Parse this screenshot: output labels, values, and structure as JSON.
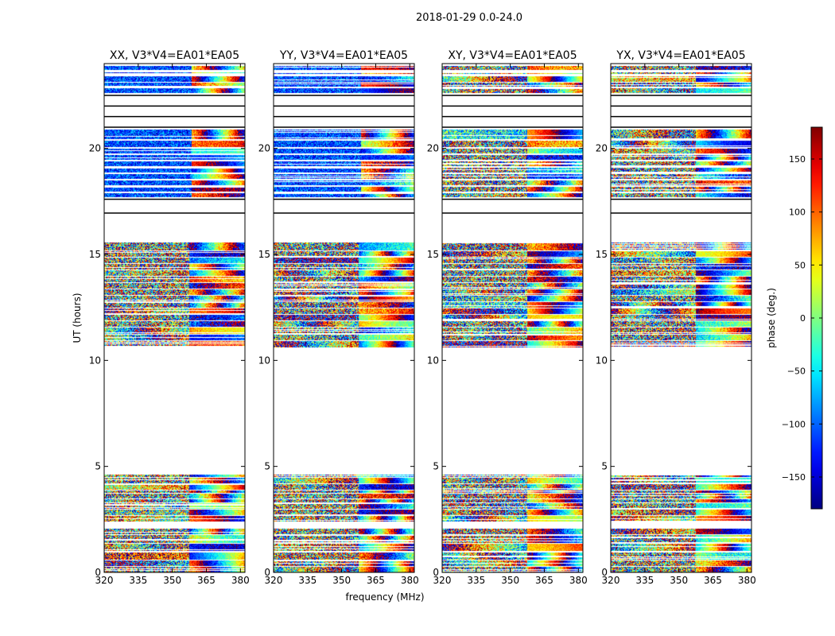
{
  "chart_data": {
    "type": "heatmap",
    "suptitle": "2018-01-29 0.0-24.0",
    "xlabel": "frequency (MHz)",
    "ylabel": "UT (hours)",
    "x_range": [
      320,
      382
    ],
    "x_ticks": [
      "320",
      "335",
      "350",
      "365",
      "380"
    ],
    "y_range": [
      0,
      24
    ],
    "y_ticks": [
      "0",
      "5",
      "10",
      "15",
      "20"
    ],
    "panels": [
      {
        "title": "XX, V3*V4=EA01*EA05"
      },
      {
        "title": "YY, V3*V4=EA01*EA05"
      },
      {
        "title": "XY, V3*V4=EA01*EA05"
      },
      {
        "title": "YX, V3*V4=EA01*EA05"
      }
    ],
    "colorbar": {
      "label": "phase (deg.)",
      "range": [
        -180,
        180
      ],
      "ticks": [
        "150",
        "100",
        "50",
        "0",
        "−50",
        "−100",
        "−150"
      ],
      "tick_values": [
        150,
        100,
        50,
        0,
        -50,
        -100,
        -150
      ],
      "colormap": "jet",
      "colormap_stops": [
        "#00007f",
        "#0000ff",
        "#00ffff",
        "#7fff7f",
        "#ffff00",
        "#ff0000",
        "#7f0000"
      ]
    },
    "data_segments_hours": [
      [
        0.0,
        0.25
      ],
      [
        0.3,
        0.55
      ],
      [
        0.6,
        0.95
      ],
      [
        1.0,
        1.35
      ],
      [
        1.4,
        1.75
      ],
      [
        1.8,
        2.05
      ],
      [
        2.4,
        2.65
      ],
      [
        2.7,
        2.95
      ],
      [
        3.0,
        3.25
      ],
      [
        3.3,
        3.45
      ],
      [
        3.5,
        3.7
      ],
      [
        3.75,
        3.85
      ],
      [
        3.9,
        4.15
      ],
      [
        4.2,
        4.45
      ],
      [
        4.5,
        4.6
      ],
      [
        10.6,
        10.9
      ],
      [
        10.95,
        11.2
      ],
      [
        11.25,
        11.55
      ],
      [
        11.6,
        11.85
      ],
      [
        11.9,
        12.15
      ],
      [
        12.2,
        12.45
      ],
      [
        12.5,
        12.75
      ],
      [
        12.8,
        13.05
      ],
      [
        13.1,
        13.35
      ],
      [
        13.4,
        13.65
      ],
      [
        13.7,
        13.95
      ],
      [
        14.0,
        14.25
      ],
      [
        14.3,
        14.55
      ],
      [
        14.6,
        14.85
      ],
      [
        14.9,
        15.15
      ],
      [
        15.2,
        15.55
      ],
      [
        17.7,
        17.9
      ],
      [
        17.95,
        18.2
      ],
      [
        18.25,
        18.5
      ],
      [
        18.55,
        18.8
      ],
      [
        18.85,
        19.1
      ],
      [
        19.15,
        19.4
      ],
      [
        19.45,
        19.7
      ],
      [
        19.75,
        20.0
      ],
      [
        20.05,
        20.35
      ],
      [
        20.45,
        20.9
      ],
      [
        22.6,
        22.85
      ],
      [
        22.9,
        23.1
      ],
      [
        23.15,
        23.4
      ],
      [
        23.5,
        23.6
      ],
      [
        23.7,
        23.9
      ]
    ],
    "empty_segment_lines_hours": [
      21.0,
      21.5,
      22.0,
      22.5,
      16.95,
      17.6
    ]
  }
}
